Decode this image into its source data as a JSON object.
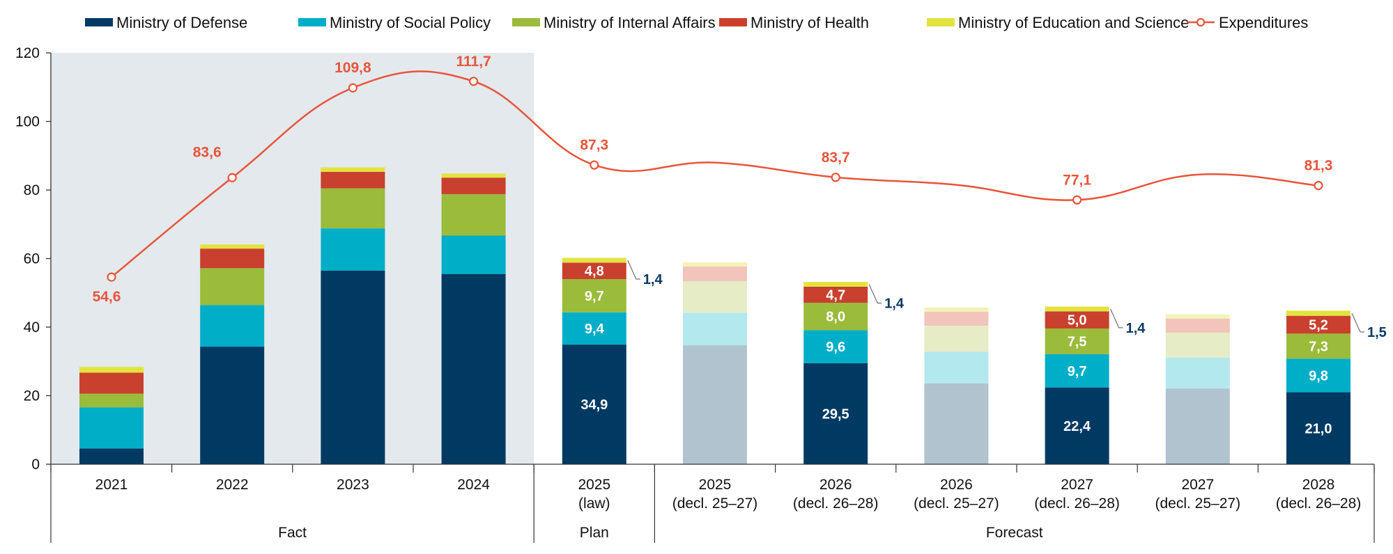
{
  "colors": {
    "defense": "#003a63",
    "social": "#00aec7",
    "internal": "#9bbb3b",
    "health": "#c9402e",
    "education": "#e3e33f",
    "defense_faded": "#b0c3cf",
    "social_faded": "#b3e8ee",
    "internal_faded": "#e5ecc6",
    "health_faded": "#f2c4bc",
    "education_faded": "#f3f3b8",
    "expenditures": "#e8553b",
    "fact_shade": "#e4e9ee",
    "side_label": "#0b3a66"
  },
  "chart_data": {
    "type": "bar",
    "stacked": true,
    "ylim": [
      0,
      120
    ],
    "yticks": [
      "0",
      "20",
      "40",
      "60",
      "80",
      "100",
      "120"
    ],
    "grid": false,
    "legend_position": "top",
    "legend": [
      {
        "name": "Ministry of Defense",
        "key": "defense",
        "kind": "bar"
      },
      {
        "name": "Ministry of Social Policy",
        "key": "social",
        "kind": "bar"
      },
      {
        "name": "Ministry of Internal Affairs",
        "key": "internal",
        "kind": "bar"
      },
      {
        "name": "Ministry of Health",
        "key": "health",
        "kind": "bar"
      },
      {
        "name": "Ministry of Education and Science",
        "key": "education",
        "kind": "bar"
      },
      {
        "name": "Expenditures",
        "key": "expenditures",
        "kind": "line"
      }
    ],
    "categories": [
      {
        "line1": "2021",
        "line2": "",
        "faded": false
      },
      {
        "line1": "2022",
        "line2": "",
        "faded": false
      },
      {
        "line1": "2023",
        "line2": "",
        "faded": false
      },
      {
        "line1": "2024",
        "line2": "",
        "faded": false
      },
      {
        "line1": "2025",
        "line2": "(law)",
        "faded": false
      },
      {
        "line1": "2025",
        "line2": "(decl. 25–27)",
        "faded": true
      },
      {
        "line1": "2026",
        "line2": "(decl. 26–28)",
        "faded": false
      },
      {
        "line1": "2026",
        "line2": "(decl. 25–27)",
        "faded": true
      },
      {
        "line1": "2027",
        "line2": "(decl. 26–28)",
        "faded": false
      },
      {
        "line1": "2027",
        "line2": "(decl. 25–27)",
        "faded": true
      },
      {
        "line1": "2028",
        "line2": "(decl. 26–28)",
        "faded": false
      }
    ],
    "groups": [
      {
        "label": "Fact",
        "from": 0,
        "to": 3,
        "shaded": true
      },
      {
        "label": "Plan",
        "from": 4,
        "to": 4,
        "shaded": false
      },
      {
        "label": "Forecast",
        "from": 5,
        "to": 10,
        "shaded": false
      }
    ],
    "series": [
      {
        "name": "Ministry of Defense",
        "key": "defense",
        "values": [
          4.6,
          34.3,
          56.5,
          55.5,
          34.9,
          34.7,
          29.5,
          23.6,
          22.4,
          22.1,
          21.0
        ]
      },
      {
        "name": "Ministry of Social Policy",
        "key": "social",
        "values": [
          12.0,
          12.1,
          12.3,
          11.2,
          9.4,
          9.5,
          9.6,
          9.2,
          9.7,
          9.0,
          9.8
        ]
      },
      {
        "name": "Ministry of Internal Affairs",
        "key": "internal",
        "values": [
          4.0,
          10.8,
          11.7,
          12.1,
          9.7,
          9.2,
          8.0,
          7.6,
          7.5,
          7.3,
          7.3
        ]
      },
      {
        "name": "Ministry of Health",
        "key": "health",
        "values": [
          6.1,
          5.7,
          4.8,
          4.8,
          4.8,
          4.3,
          4.7,
          4.1,
          5.0,
          4.1,
          5.2
        ]
      },
      {
        "name": "Ministry of Education and Science",
        "key": "education",
        "values": [
          1.7,
          1.2,
          1.3,
          1.2,
          1.4,
          1.2,
          1.4,
          1.2,
          1.4,
          1.2,
          1.5
        ]
      }
    ],
    "segment_labels": [
      null,
      null,
      null,
      null,
      {
        "defense": "34,9",
        "social": "9,4",
        "internal": "9,7",
        "health": "4,8",
        "education_side": "1,4"
      },
      null,
      {
        "defense": "29,5",
        "social": "9,6",
        "internal": "8,0",
        "health": "4,7",
        "education_side": "1,4"
      },
      null,
      {
        "defense": "22,4",
        "social": "9,7",
        "internal": "7,5",
        "health": "5,0",
        "education_side": "1,4"
      },
      null,
      {
        "defense": "21,0",
        "social": "9,8",
        "internal": "7,3",
        "health": "5,2",
        "education_side": "1,5"
      }
    ],
    "expenditures": {
      "name": "Expenditures",
      "points": [
        {
          "category": 0,
          "value": 54.6,
          "label": "54,6",
          "label_pos": "below"
        },
        {
          "category": 1,
          "value": 83.6,
          "label": "83,6",
          "label_pos": "above-left"
        },
        {
          "category": 2,
          "value": 109.8,
          "label": "109,8",
          "label_pos": "above"
        },
        {
          "category": 3,
          "value": 111.7,
          "label": "111,7",
          "label_pos": "above"
        },
        {
          "category": 4,
          "value": 87.3,
          "label": "87,3",
          "label_pos": "above"
        },
        {
          "category": 5,
          "value": 88.0,
          "label": null,
          "marker": false
        },
        {
          "category": 6,
          "value": 83.7,
          "label": "83,7",
          "label_pos": "above"
        },
        {
          "category": 7,
          "value": 81.5,
          "label": null,
          "marker": false
        },
        {
          "category": 8,
          "value": 77.1,
          "label": "77,1",
          "label_pos": "above"
        },
        {
          "category": 9,
          "value": 84.5,
          "label": null,
          "marker": false
        },
        {
          "category": 10,
          "value": 81.3,
          "label": "81,3",
          "label_pos": "above"
        }
      ]
    }
  }
}
